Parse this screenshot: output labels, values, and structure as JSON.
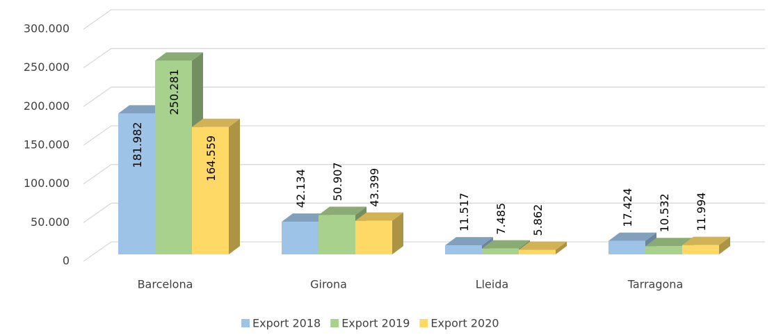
{
  "chart_data": {
    "type": "bar3d",
    "categories": [
      "Barcelona",
      "Girona",
      "Lleida",
      "Tarragona"
    ],
    "series": [
      {
        "name": "Export 2018",
        "color": "#9dc3e6",
        "values": [
          181982,
          42134,
          11517,
          17424
        ],
        "value_labels": [
          "181.982",
          "42.134",
          "11.517",
          "17.424"
        ]
      },
      {
        "name": "Export 2019",
        "color": "#a9d18e",
        "values": [
          250281,
          50907,
          7485,
          10532
        ],
        "value_labels": [
          "250.281",
          "50.907",
          "7.485",
          "10.532"
        ]
      },
      {
        "name": "Export 2020",
        "color": "#ffd966",
        "values": [
          164559,
          43399,
          5862,
          11994
        ],
        "value_labels": [
          "164.559",
          "43.399",
          "5.862",
          "11.994"
        ]
      }
    ],
    "ylim": [
      0,
      300000
    ],
    "yticks": [
      0,
      {
        "value": 50000,
        "label": "50.000"
      },
      {
        "value": 100000,
        "label": "100.000"
      },
      {
        "value": 150000,
        "label": "150.000"
      },
      {
        "value": 200000,
        "label": "200.000"
      },
      {
        "value": 250000,
        "label": "250.000"
      },
      {
        "value": 300000,
        "label": "300.000"
      }
    ],
    "grid": true,
    "legend": "bottom"
  }
}
